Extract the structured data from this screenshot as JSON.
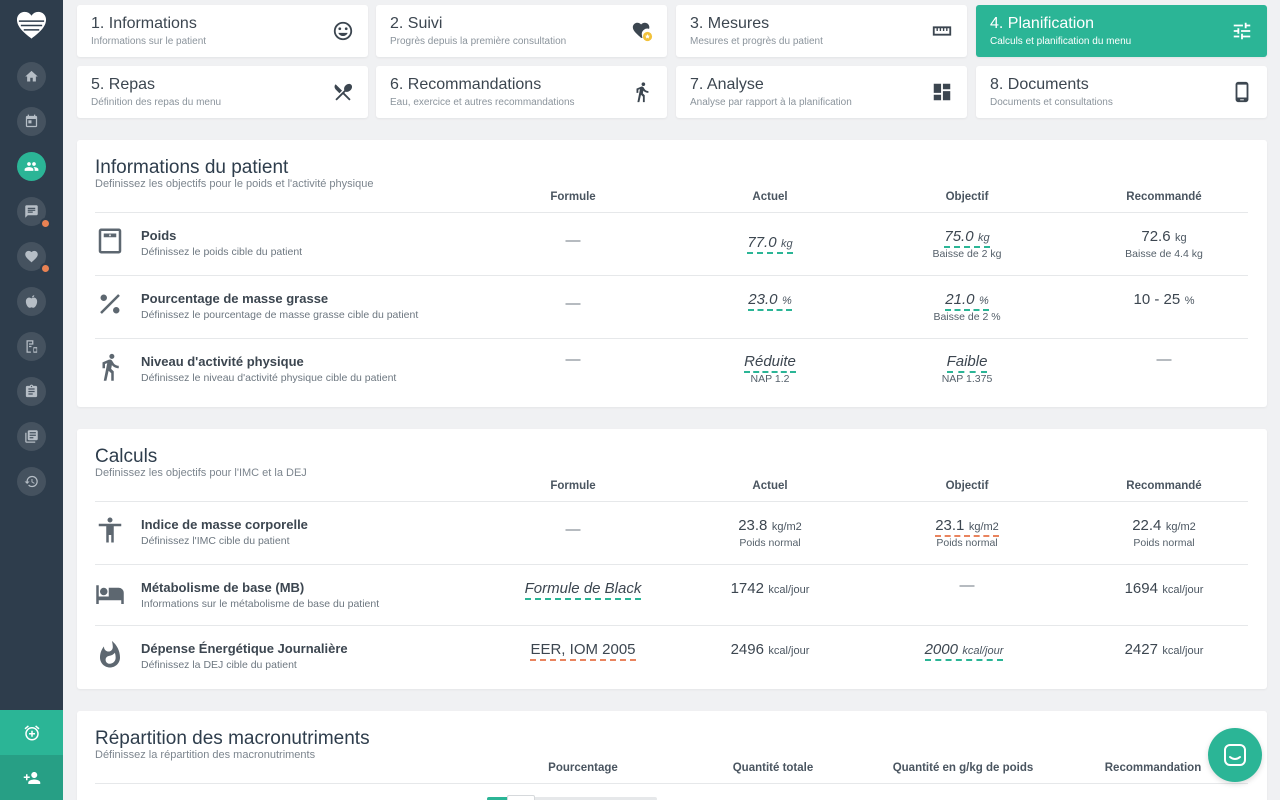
{
  "sidebar": {
    "items": [
      {
        "name": "sidebar-item-home",
        "icon": "home-icon"
      },
      {
        "name": "sidebar-item-calendar",
        "icon": "calendar-icon"
      },
      {
        "name": "sidebar-item-patients",
        "icon": "people-icon",
        "active": true
      },
      {
        "name": "sidebar-item-messages",
        "icon": "chat-icon"
      },
      {
        "name": "sidebar-item-favorites",
        "icon": "heart-icon"
      },
      {
        "name": "sidebar-item-foods",
        "icon": "apple-icon"
      },
      {
        "name": "sidebar-item-recipes",
        "icon": "recipe-icon"
      },
      {
        "name": "sidebar-item-plans",
        "icon": "clipboard-icon"
      },
      {
        "name": "sidebar-item-library",
        "icon": "library-icon"
      },
      {
        "name": "sidebar-item-history",
        "icon": "history-icon"
      }
    ],
    "accent_color": "#2bb596",
    "badge_color": "#e98253"
  },
  "tabs": [
    {
      "title": "1. Informations",
      "sub": "Informations sur le patient",
      "icon": "smiley-icon"
    },
    {
      "title": "2. Suivi",
      "sub": "Progrès depuis la première consultation",
      "icon": "heart-star-icon"
    },
    {
      "title": "3. Mesures",
      "sub": "Mesures et progrès du patient",
      "icon": "ruler-icon"
    },
    {
      "title": "4. Planification",
      "sub": "Calculs et planification du menu",
      "icon": "sliders-icon",
      "active": true
    },
    {
      "title": "5. Repas",
      "sub": "Définition des repas du menu",
      "icon": "utensils-icon"
    },
    {
      "title": "6. Recommandations",
      "sub": "Eau, exercice et autres recommandations",
      "icon": "walking-icon"
    },
    {
      "title": "7. Analyse",
      "sub": "Analyse par rapport à la planification",
      "icon": "dashboard-icon"
    },
    {
      "title": "8. Documents",
      "sub": "Documents et consultations",
      "icon": "phone-icon"
    }
  ],
  "patient_info": {
    "title": "Informations du patient",
    "subtitle": "Definissez les objectifs pour le poids et l'activité physique",
    "columns": [
      "Formule",
      "Actuel",
      "Objectif",
      "Recommandé"
    ],
    "rows": [
      {
        "name": "Poids",
        "desc": "Définissez le poids cible du patient",
        "icon": "scale-icon",
        "formule": "—",
        "actuel": "77.0",
        "actuel_unit": "kg",
        "objectif": "75.0",
        "objectif_unit": "kg",
        "objectif_note": "Baisse de 2 kg",
        "recommande": "72.6",
        "recommande_unit": "kg",
        "recommande_note": "Baisse de 4.4 kg"
      },
      {
        "name": "Pourcentage de masse grasse",
        "desc": "Définissez le pourcentage de masse grasse cible du patient",
        "icon": "percent-icon",
        "formule": "—",
        "actuel": "23.0",
        "actuel_unit": "%",
        "objectif": "21.0",
        "objectif_unit": "%",
        "objectif_note": "Baisse de 2 %",
        "recommande": "10 - 25",
        "recommande_unit": "%"
      },
      {
        "name": "Niveau d'activité physique",
        "desc": "Définissez le niveau d'activité physique cible du patient",
        "icon": "running-icon",
        "formule": "—",
        "actuel": "Réduite",
        "actuel_note": "NAP 1.2",
        "objectif": "Faible",
        "objectif_note": "NAP 1.375",
        "recommande": "—"
      }
    ]
  },
  "calculs": {
    "title": "Calculs",
    "subtitle": "Definissez les objectifs pour l'IMC et la DEJ",
    "columns": [
      "Formule",
      "Actuel",
      "Objectif",
      "Recommandé"
    ],
    "rows": [
      {
        "name": "Indice de masse corporelle",
        "desc": "Définissez l'IMC cible du patient",
        "icon": "person-icon",
        "formule": "—",
        "actuel": "23.8",
        "actuel_unit": "kg/m2",
        "actuel_note": "Poids normal",
        "objectif": "23.1",
        "objectif_unit": "kg/m2",
        "objectif_note": "Poids normal",
        "recommande": "22.4",
        "recommande_unit": "kg/m2",
        "recommande_note": "Poids normal"
      },
      {
        "name": "Métabolisme de base (MB)",
        "desc": "Informations sur le métabolisme de base du patient",
        "icon": "bed-icon",
        "formule": "Formule de Black",
        "actuel": "1742",
        "actuel_unit": "kcal/jour",
        "objectif": "—",
        "recommande": "1694",
        "recommande_unit": "kcal/jour"
      },
      {
        "name": "Dépense Énergétique Journalière",
        "desc": "Définissez la DEJ cible du patient",
        "icon": "flame-icon",
        "formule": "EER, IOM 2005",
        "actuel": "2496",
        "actuel_unit": "kcal/jour",
        "objectif": "2000",
        "objectif_unit": "kcal/jour",
        "recommande": "2427",
        "recommande_unit": "kcal/jour"
      }
    ]
  },
  "macros": {
    "title": "Répartition des macronutriments",
    "subtitle": "Définissez la répartition des macronutriments",
    "columns": [
      "Pourcentage",
      "Quantité totale",
      "Quantité en g/kg de poids",
      "Recommandation"
    ]
  }
}
